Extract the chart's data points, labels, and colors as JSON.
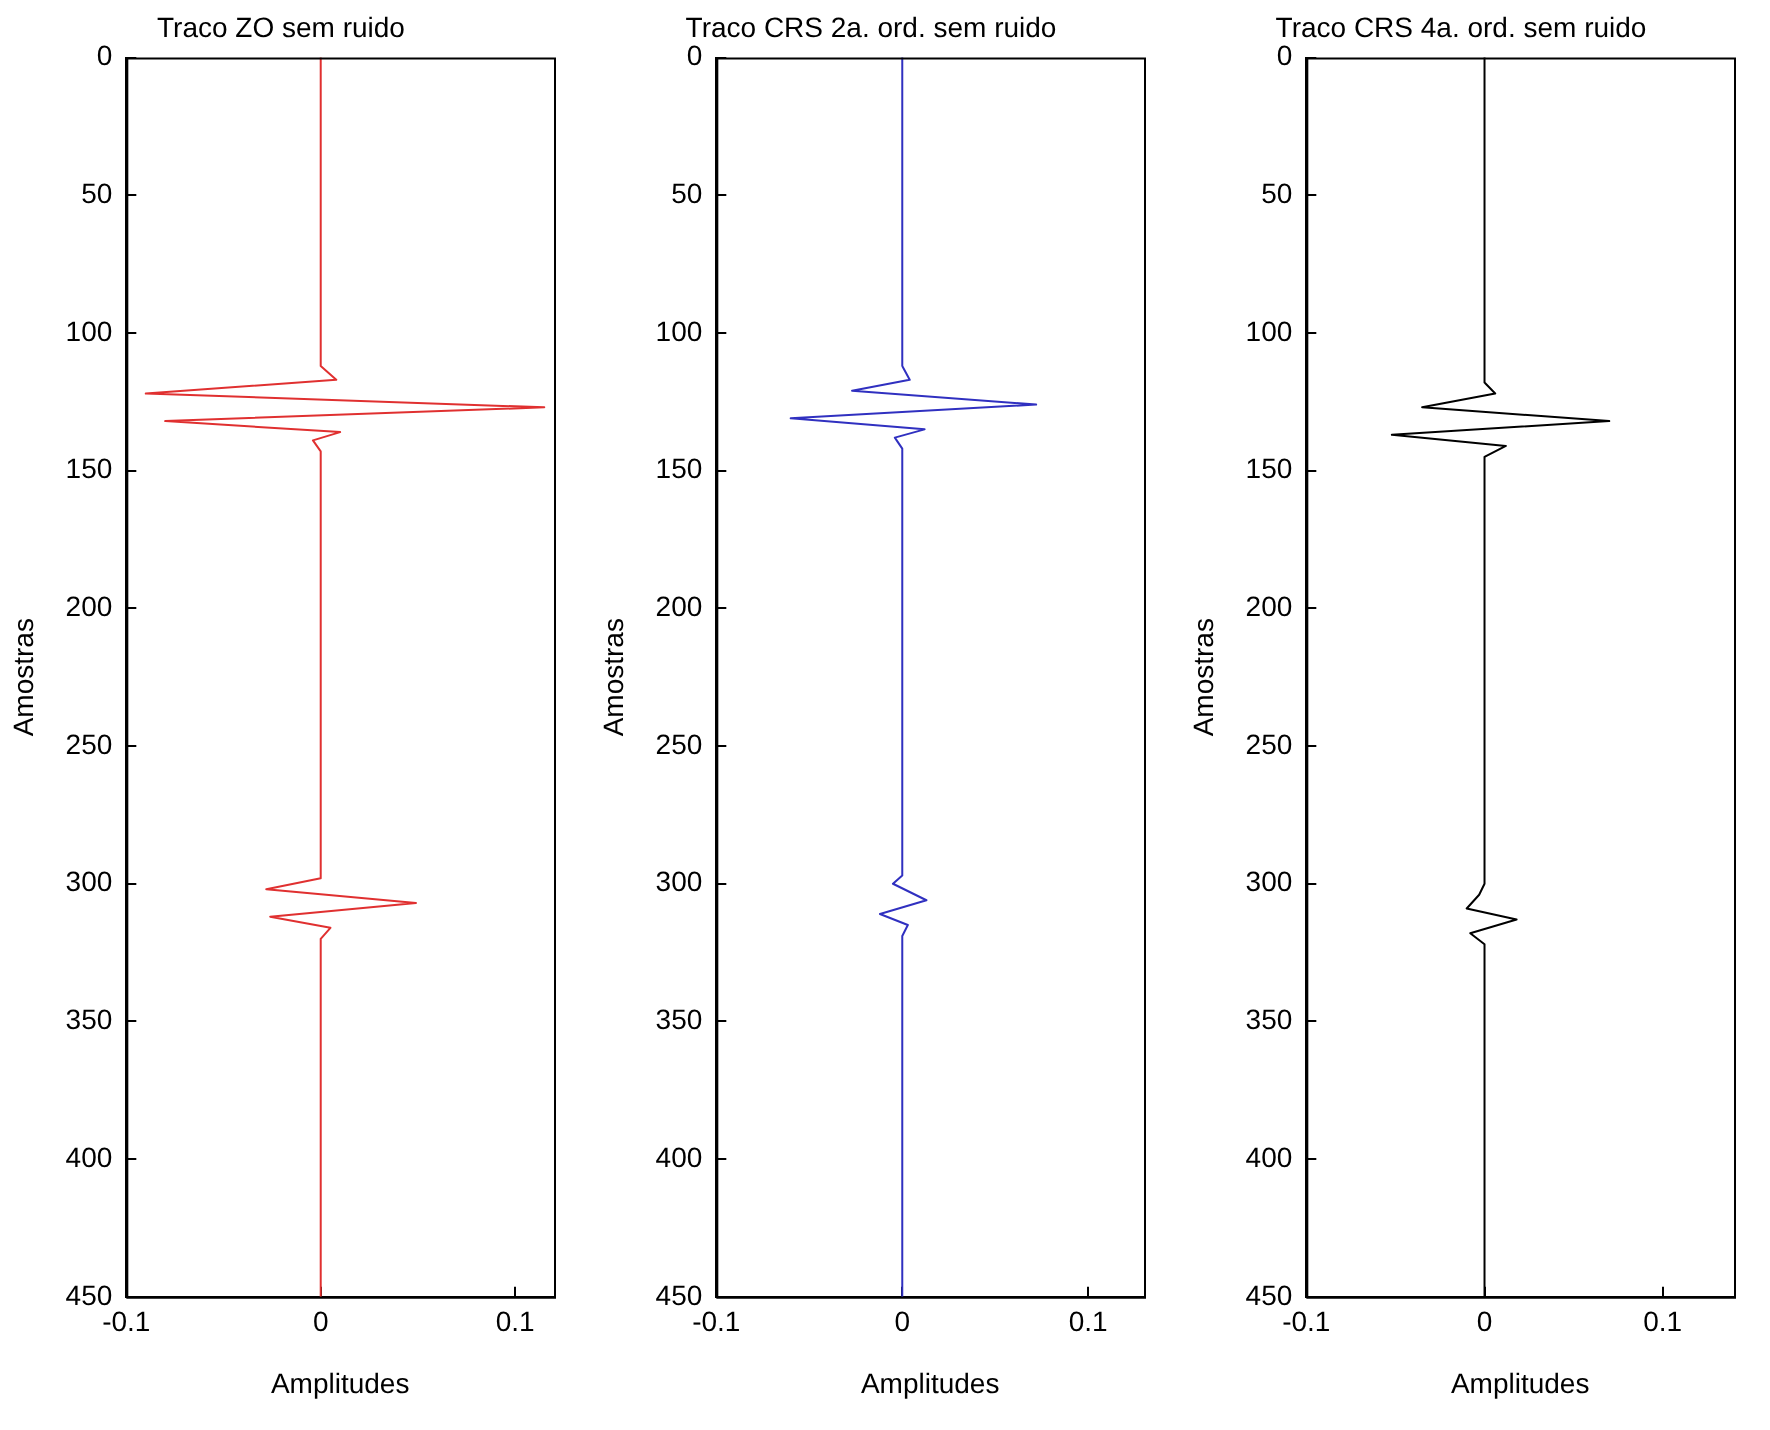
{
  "chart_data": [
    {
      "type": "line",
      "title": "Traco ZO sem ruido",
      "xlabel": "Amplitudes",
      "ylabel": "Amostras",
      "xlim": [
        -0.1,
        0.12
      ],
      "xticks": [
        -0.1,
        0,
        0.1
      ],
      "ylim": [
        450,
        0
      ],
      "yticks": [
        0,
        50,
        100,
        150,
        200,
        250,
        300,
        350,
        400,
        450
      ],
      "grid": false,
      "legend": false,
      "marker": "none",
      "series": [
        {
          "color": "#e03030",
          "x": [
            0,
            0,
            0.008,
            -0.09,
            0.115,
            -0.08,
            0.01,
            -0.004,
            0,
            0,
            -0.028,
            0.049,
            -0.026,
            0.005,
            0,
            0
          ],
          "values": [
            0,
            112,
            117,
            122,
            127,
            132,
            136,
            139,
            143,
            298,
            302,
            307,
            312,
            316,
            320,
            450
          ]
        }
      ]
    },
    {
      "type": "line",
      "title": "Traco CRS 2a. ord. sem ruido",
      "xlabel": "Amplitudes",
      "ylabel": "Amostras",
      "xlim": [
        -0.1,
        0.13
      ],
      "xticks": [
        -0.1,
        0,
        0.1
      ],
      "ylim": [
        450,
        0
      ],
      "yticks": [
        0,
        50,
        100,
        150,
        200,
        250,
        300,
        350,
        400,
        450
      ],
      "grid": false,
      "legend": false,
      "marker": "none",
      "series": [
        {
          "color": "#3030c0",
          "x": [
            0,
            0,
            0.004,
            -0.027,
            0.072,
            -0.06,
            0.012,
            -0.004,
            0,
            0,
            -0.005,
            0.013,
            -0.012,
            0.003,
            0,
            0
          ],
          "values": [
            0,
            112,
            117,
            121,
            126,
            131,
            135,
            138,
            142,
            297,
            300,
            306,
            311,
            315,
            319,
            450
          ]
        }
      ]
    },
    {
      "type": "line",
      "title": "Traco CRS 4a. ord. sem ruido",
      "xlabel": "Amplitudes",
      "ylabel": "Amostras",
      "xlim": [
        -0.1,
        0.14
      ],
      "xticks": [
        -0.1,
        0,
        0.1
      ],
      "ylim": [
        450,
        0
      ],
      "yticks": [
        0,
        50,
        100,
        150,
        200,
        250,
        300,
        350,
        400,
        450
      ],
      "grid": false,
      "legend": false,
      "marker": "none",
      "series": [
        {
          "color": "#000000",
          "x": [
            0,
            0,
            0.006,
            -0.035,
            0.07,
            -0.052,
            0.012,
            0,
            0,
            -0.003,
            -0.01,
            0.018,
            -0.008,
            0,
            0
          ],
          "values": [
            0,
            118,
            122,
            127,
            132,
            137,
            141,
            145,
            300,
            304,
            309,
            313,
            318,
            322,
            450
          ]
        }
      ]
    }
  ]
}
